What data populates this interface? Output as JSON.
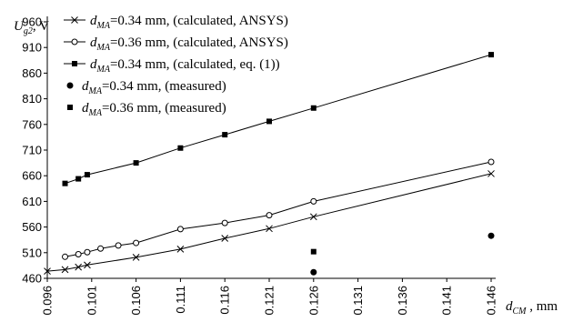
{
  "chart_data": {
    "type": "line",
    "y_axis_title": {
      "symbol": "U",
      "subscript": "g2",
      "unit": ", V"
    },
    "x_axis_title": {
      "symbol": "d",
      "subscript": "CM",
      "unit": " , mm"
    },
    "xlim": [
      0.096,
      0.146
    ],
    "ylim": [
      460,
      960
    ],
    "x_ticks": [
      "0.096",
      "0.101",
      "0.106",
      "0.111",
      "0.116",
      "0.121",
      "0.126",
      "0.131",
      "0.136",
      "0.141",
      "0.146"
    ],
    "y_ticks": [
      "460",
      "510",
      "560",
      "610",
      "660",
      "710",
      "760",
      "810",
      "860",
      "910",
      "960"
    ],
    "grid": false,
    "legend_position": "top-left",
    "series": [
      {
        "name": "=0.34 mm, (calculated, ANSYS)",
        "legend_symbol": "d",
        "legend_subscript": "MA",
        "marker": "x",
        "line": true,
        "color": "#000000",
        "points": [
          [
            0.096,
            474
          ],
          [
            0.098,
            477
          ],
          [
            0.0995,
            482
          ],
          [
            0.1005,
            486
          ],
          [
            0.106,
            501
          ],
          [
            0.111,
            517
          ],
          [
            0.116,
            538
          ],
          [
            0.121,
            557
          ],
          [
            0.126,
            580
          ],
          [
            0.146,
            664
          ]
        ]
      },
      {
        "name": "=0.36 mm, (calculated, ANSYS)",
        "legend_symbol": "d",
        "legend_subscript": "MA",
        "marker": "open-circle",
        "line": true,
        "color": "#000000",
        "points": [
          [
            0.098,
            502
          ],
          [
            0.0995,
            507
          ],
          [
            0.1005,
            511
          ],
          [
            0.102,
            518
          ],
          [
            0.104,
            524
          ],
          [
            0.106,
            529
          ],
          [
            0.111,
            556
          ],
          [
            0.116,
            568
          ],
          [
            0.121,
            583
          ],
          [
            0.126,
            610
          ],
          [
            0.146,
            687
          ]
        ]
      },
      {
        "name": "=0.34 mm, (calculated, eq. (1))",
        "legend_symbol": "d",
        "legend_subscript": "MA",
        "marker": "square",
        "line": true,
        "color": "#000000",
        "points": [
          [
            0.098,
            645
          ],
          [
            0.0995,
            654
          ],
          [
            0.1005,
            662
          ],
          [
            0.106,
            685
          ],
          [
            0.111,
            714
          ],
          [
            0.116,
            740
          ],
          [
            0.121,
            766
          ],
          [
            0.126,
            792
          ],
          [
            0.146,
            896
          ]
        ]
      },
      {
        "name": "=0.34 mm, (measured)",
        "legend_symbol": "d",
        "legend_subscript": "MA",
        "marker": "filled-circle",
        "line": false,
        "color": "#000000",
        "points": [
          [
            0.126,
            472
          ],
          [
            0.146,
            543
          ]
        ]
      },
      {
        "name": "=0.36 mm, (measured)",
        "legend_symbol": "d",
        "legend_subscript": "MA",
        "marker": "square",
        "line": false,
        "color": "#000000",
        "points": [
          [
            0.126,
            512
          ]
        ]
      }
    ]
  }
}
